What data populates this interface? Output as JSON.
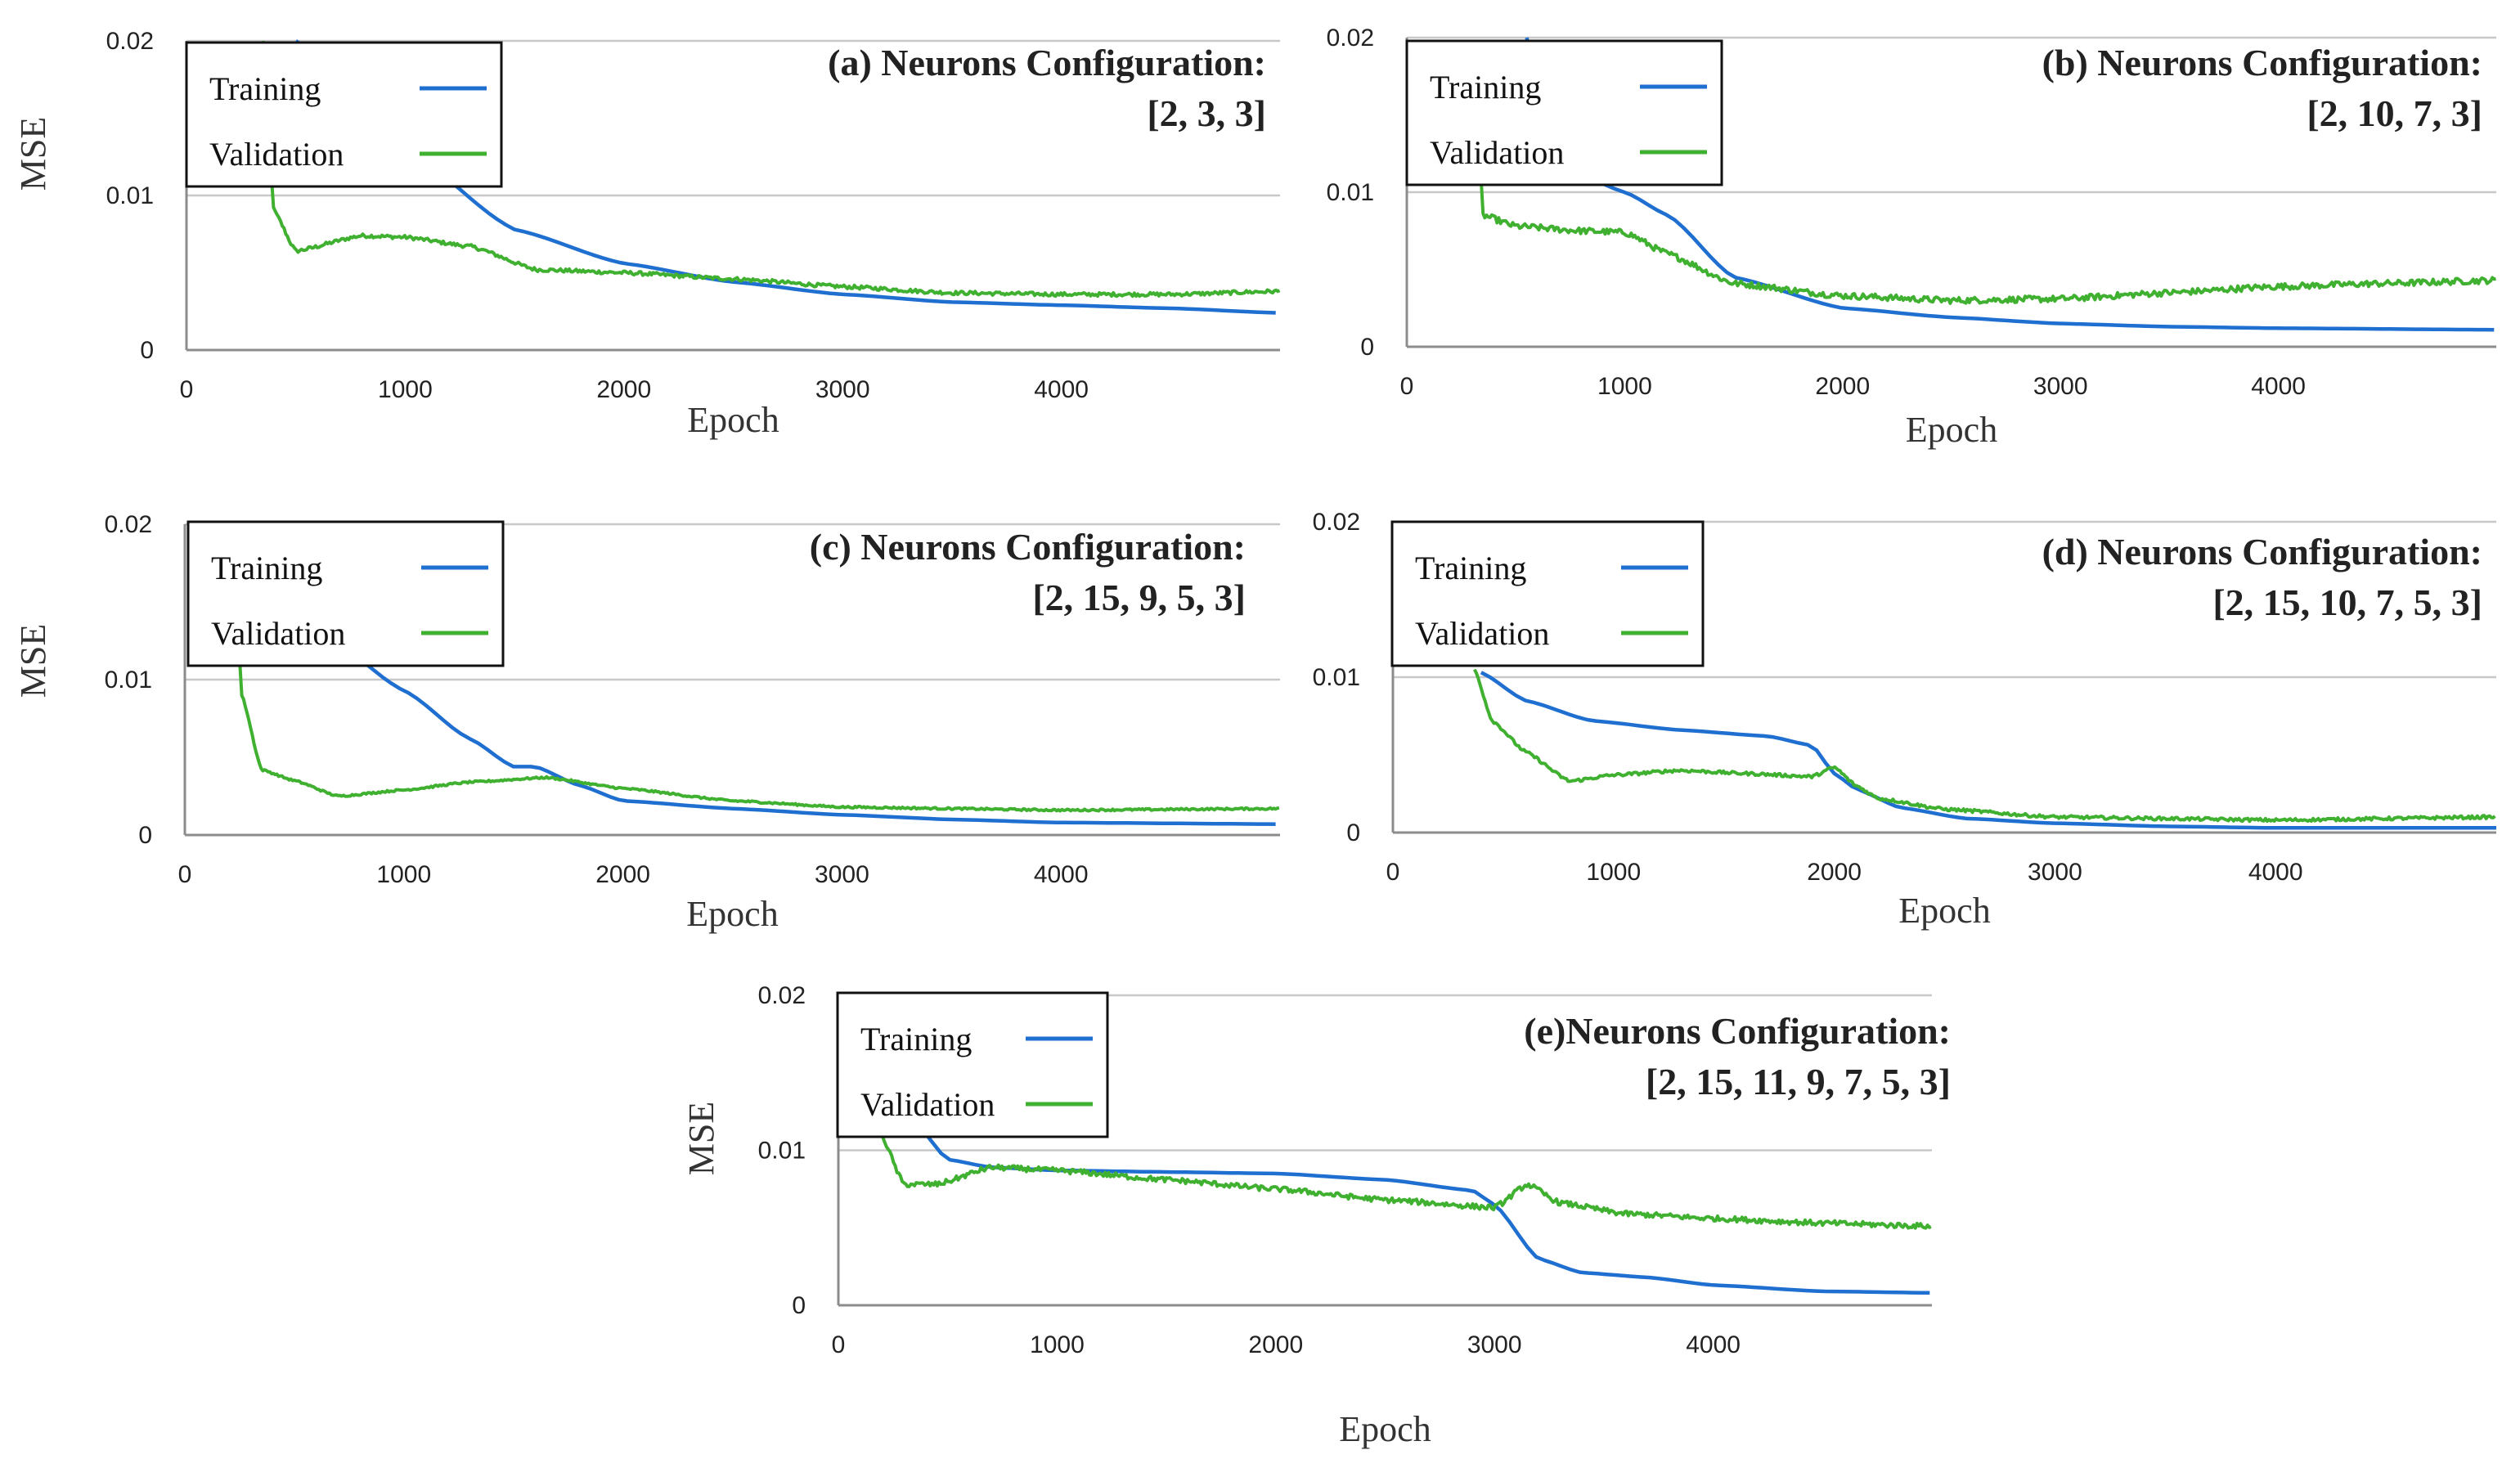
{
  "colors": {
    "training": "#1f6fd0",
    "validation": "#3fb02f",
    "grid": "#c8c8c8",
    "axis": "#8c8c8c"
  },
  "chart_data": [
    {
      "type": "line",
      "title_line1": "(a) Neurons Configuration:",
      "title_line2": "[2, 3, 3]",
      "xlabel": "Epoch",
      "ylabel": "MSE",
      "xlim": [
        0,
        5000
      ],
      "ylim": [
        0,
        0.02
      ],
      "xticks": [
        "0",
        "1000",
        "2000",
        "3000",
        "4000"
      ],
      "yticks": [
        "0",
        "0.01",
        "0.02"
      ],
      "grid": true,
      "legend_position": "top-left",
      "series": [
        {
          "name": "Training",
          "color": "#1f6fd0",
          "noise": 0,
          "points": [
            [
              500,
              0.02
            ],
            [
              1000,
              0.013
            ],
            [
              1500,
              0.0078
            ],
            [
              2000,
              0.0056
            ],
            [
              2500,
              0.0044
            ],
            [
              3000,
              0.0036
            ],
            [
              3500,
              0.0031
            ],
            [
              4000,
              0.0029
            ],
            [
              4500,
              0.0027
            ],
            [
              5000,
              0.0024
            ]
          ]
        },
        {
          "name": "Validation",
          "color": "#3fb02f",
          "noise": 0.00012,
          "points": [
            [
              350,
              0.02
            ],
            [
              400,
              0.009
            ],
            [
              500,
              0.0064
            ],
            [
              800,
              0.0074
            ],
            [
              1000,
              0.0073
            ],
            [
              1300,
              0.0067
            ],
            [
              1600,
              0.0052
            ],
            [
              2000,
              0.005
            ],
            [
              2500,
              0.0046
            ],
            [
              3000,
              0.0041
            ],
            [
              3500,
              0.0037
            ],
            [
              4000,
              0.0036
            ],
            [
              4500,
              0.0036
            ],
            [
              5000,
              0.0038
            ]
          ]
        }
      ]
    },
    {
      "type": "line",
      "title_line1": "(b) Neurons Configuration:",
      "title_line2": "[2, 10, 7, 3]",
      "xlabel": "Epoch",
      "ylabel": "MSE",
      "xlim": [
        0,
        5000
      ],
      "ylim": [
        0,
        0.02
      ],
      "xticks": [
        "0",
        "1000",
        "2000",
        "3000",
        "4000"
      ],
      "yticks": [
        "0",
        "0.01",
        "0.02"
      ],
      "grid": true,
      "legend_position": "top-left",
      "series": [
        {
          "name": "Training",
          "color": "#1f6fd0",
          "noise": 0,
          "points": [
            [
              550,
              0.02
            ],
            [
              700,
              0.0118
            ],
            [
              1000,
              0.01
            ],
            [
              1200,
              0.0085
            ],
            [
              1500,
              0.0045
            ],
            [
              2000,
              0.0025
            ],
            [
              2500,
              0.0019
            ],
            [
              3000,
              0.0015
            ],
            [
              3500,
              0.0013
            ],
            [
              4000,
              0.0012
            ],
            [
              5000,
              0.0011
            ]
          ]
        },
        {
          "name": "Validation",
          "color": "#3fb02f",
          "noise": 0.0002,
          "points": [
            [
              310,
              0.02
            ],
            [
              350,
              0.0085
            ],
            [
              500,
              0.0078
            ],
            [
              800,
              0.0075
            ],
            [
              1000,
              0.0074
            ],
            [
              1200,
              0.006
            ],
            [
              1500,
              0.0041
            ],
            [
              2000,
              0.0033
            ],
            [
              2500,
              0.003
            ],
            [
              3000,
              0.0031
            ],
            [
              3500,
              0.0035
            ],
            [
              4000,
              0.0039
            ],
            [
              4500,
              0.0041
            ],
            [
              5000,
              0.0043
            ]
          ]
        }
      ]
    },
    {
      "type": "line",
      "title_line1": "(c) Neurons Configuration:",
      "title_line2": "[2, 15, 9, 5, 3]",
      "xlabel": "Epoch",
      "ylabel": "MSE",
      "xlim": [
        0,
        5000
      ],
      "ylim": [
        0,
        0.02
      ],
      "xticks": [
        "0",
        "1000",
        "2000",
        "3000",
        "4000"
      ],
      "yticks": [
        "0",
        "0.01",
        "0.02"
      ],
      "grid": true,
      "legend_position": "top-left",
      "series": [
        {
          "name": "Training",
          "color": "#1f6fd0",
          "noise": 0,
          "points": [
            [
              700,
              0.0122
            ],
            [
              1000,
              0.0093
            ],
            [
              1300,
              0.0062
            ],
            [
              1500,
              0.0044
            ],
            [
              1600,
              0.0044
            ],
            [
              1800,
              0.0032
            ],
            [
              2000,
              0.0022
            ],
            [
              2500,
              0.0017
            ],
            [
              3000,
              0.0013
            ],
            [
              3500,
              0.001
            ],
            [
              4000,
              0.0008
            ],
            [
              5000,
              0.0007
            ]
          ]
        },
        {
          "name": "Validation",
          "color": "#3fb02f",
          "noise": 6e-05,
          "points": [
            [
              220,
              0.02
            ],
            [
              260,
              0.009
            ],
            [
              350,
              0.0042
            ],
            [
              500,
              0.0035
            ],
            [
              700,
              0.0025
            ],
            [
              1000,
              0.0029
            ],
            [
              1300,
              0.0034
            ],
            [
              1650,
              0.0037
            ],
            [
              2000,
              0.003
            ],
            [
              2500,
              0.0022
            ],
            [
              3000,
              0.0018
            ],
            [
              3500,
              0.0017
            ],
            [
              4000,
              0.0016
            ],
            [
              5000,
              0.0017
            ]
          ]
        }
      ]
    },
    {
      "type": "line",
      "title_line1": "(d) Neurons Configuration:",
      "title_line2": "[2, 15, 10, 7, 5, 3]",
      "xlabel": "Epoch",
      "ylabel": "MSE",
      "xlim": [
        0,
        5000
      ],
      "ylim": [
        0,
        0.02
      ],
      "xticks": [
        "0",
        "1000",
        "2000",
        "3000",
        "4000"
      ],
      "yticks": [
        "0",
        "0.01",
        "0.02"
      ],
      "grid": true,
      "legend_position": "top-left",
      "series": [
        {
          "name": "Training",
          "color": "#1f6fd0",
          "noise": 0,
          "points": [
            [
              400,
              0.0103
            ],
            [
              600,
              0.0085
            ],
            [
              900,
              0.0072
            ],
            [
              1300,
              0.0066
            ],
            [
              1700,
              0.0062
            ],
            [
              1900,
              0.0056
            ],
            [
              2000,
              0.0038
            ],
            [
              2100,
              0.0028
            ],
            [
              2300,
              0.0016
            ],
            [
              2600,
              0.0009
            ],
            [
              3000,
              0.0006
            ],
            [
              3500,
              0.0004
            ],
            [
              4000,
              0.0003
            ],
            [
              5000,
              0.0003
            ]
          ]
        },
        {
          "name": "Validation",
          "color": "#3fb02f",
          "noise": 0.0001,
          "points": [
            [
              370,
              0.0105
            ],
            [
              450,
              0.0072
            ],
            [
              600,
              0.0052
            ],
            [
              800,
              0.0033
            ],
            [
              1000,
              0.0037
            ],
            [
              1300,
              0.004
            ],
            [
              1600,
              0.0038
            ],
            [
              1900,
              0.0036
            ],
            [
              2000,
              0.0042
            ],
            [
              2100,
              0.003
            ],
            [
              2200,
              0.0022
            ],
            [
              2500,
              0.0015
            ],
            [
              3000,
              0.001
            ],
            [
              3500,
              0.0009
            ],
            [
              4000,
              0.0008
            ],
            [
              5000,
              0.001
            ]
          ]
        }
      ]
    },
    {
      "type": "line",
      "title_line1": "(e)Neurons Configuration:",
      "title_line2": "[2, 15, 11, 9, 7, 5, 3]",
      "xlabel": "Epoch",
      "ylabel": "MSE",
      "xlim": [
        0,
        5000
      ],
      "ylim": [
        0,
        0.02
      ],
      "xticks": [
        "0",
        "1000",
        "2000",
        "3000",
        "4000"
      ],
      "yticks": [
        "0",
        "0.01",
        "0.02"
      ],
      "grid": true,
      "legend_position": "top-left",
      "series": [
        {
          "name": "Training",
          "color": "#1f6fd0",
          "noise": 0,
          "points": [
            [
              350,
              0.0118
            ],
            [
              500,
              0.0094
            ],
            [
              700,
              0.0089
            ],
            [
              1000,
              0.0087
            ],
            [
              1500,
              0.0086
            ],
            [
              2000,
              0.0085
            ],
            [
              2500,
              0.0081
            ],
            [
              2900,
              0.0074
            ],
            [
              3000,
              0.0065
            ],
            [
              3200,
              0.003
            ],
            [
              3400,
              0.0021
            ],
            [
              3700,
              0.0018
            ],
            [
              4000,
              0.0013
            ],
            [
              4500,
              0.0009
            ],
            [
              5000,
              0.0008
            ]
          ]
        },
        {
          "name": "Validation",
          "color": "#3fb02f",
          "noise": 0.00017,
          "points": [
            [
              180,
              0.0115
            ],
            [
              300,
              0.0078
            ],
            [
              450,
              0.0078
            ],
            [
              700,
              0.0089
            ],
            [
              1000,
              0.0087
            ],
            [
              1500,
              0.0081
            ],
            [
              2000,
              0.0075
            ],
            [
              2500,
              0.0068
            ],
            [
              3000,
              0.0063
            ],
            [
              3150,
              0.0078
            ],
            [
              3300,
              0.0066
            ],
            [
              3600,
              0.0059
            ],
            [
              4000,
              0.0056
            ],
            [
              4500,
              0.0053
            ],
            [
              5000,
              0.0051
            ]
          ]
        }
      ]
    }
  ]
}
